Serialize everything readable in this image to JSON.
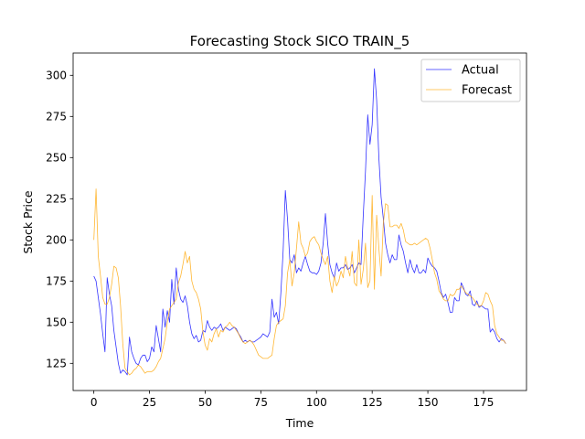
{
  "chart_data": {
    "type": "line",
    "title": "Forecasting Stock SICO TRAIN_5",
    "xlabel": "Time",
    "ylabel": "Stock Price",
    "xlim": [
      -9.3,
      194.3
    ],
    "ylim": [
      108.5,
      313.5
    ],
    "xticks": [
      "0",
      "25",
      "50",
      "75",
      "100",
      "125",
      "150",
      "175"
    ],
    "xtick_values": [
      0,
      25,
      50,
      75,
      100,
      125,
      150,
      175
    ],
    "yticks": [
      "125",
      "150",
      "175",
      "200",
      "225",
      "250",
      "275",
      "300"
    ],
    "ytick_values": [
      125,
      150,
      175,
      200,
      225,
      250,
      275,
      300
    ],
    "grid": false,
    "legend_position": "top-right",
    "series": [
      {
        "name": "Actual",
        "color": "#0000ff",
        "x": [
          0,
          1,
          2,
          3,
          4,
          5,
          6,
          7,
          8,
          9,
          10,
          11,
          12,
          13,
          14,
          15,
          16,
          17,
          18,
          19,
          20,
          21,
          22,
          23,
          24,
          25,
          26,
          27,
          28,
          29,
          30,
          31,
          32,
          33,
          34,
          35,
          36,
          37,
          38,
          39,
          40,
          41,
          42,
          43,
          44,
          45,
          46,
          47,
          48,
          49,
          50,
          51,
          52,
          53,
          54,
          55,
          56,
          57,
          58,
          59,
          60,
          61,
          62,
          63,
          64,
          65,
          66,
          67,
          68,
          69,
          70,
          71,
          72,
          73,
          74,
          75,
          76,
          77,
          78,
          79,
          80,
          81,
          82,
          83,
          84,
          85,
          86,
          87,
          88,
          89,
          90,
          91,
          92,
          93,
          94,
          95,
          96,
          97,
          98,
          99,
          100,
          101,
          102,
          103,
          104,
          105,
          106,
          107,
          108,
          109,
          110,
          111,
          112,
          113,
          114,
          115,
          116,
          117,
          118,
          119,
          120,
          121,
          122,
          123,
          124,
          125,
          126,
          127,
          128,
          129,
          130,
          131,
          132,
          133,
          134,
          135,
          136,
          137,
          138,
          139,
          140,
          141,
          142,
          143,
          144,
          145,
          146,
          147,
          148,
          149,
          150,
          151,
          152,
          153,
          154,
          155,
          156,
          157,
          158,
          159,
          160,
          161,
          162,
          163,
          164,
          165,
          166,
          167,
          168,
          169,
          170,
          171,
          172,
          173,
          174,
          175,
          176,
          177,
          178,
          179,
          180,
          181,
          182,
          183,
          184,
          185
        ],
        "values": [
          178,
          175,
          165,
          155,
          143,
          132,
          177,
          167,
          160,
          145,
          135,
          125,
          119,
          121,
          120,
          118,
          141,
          132,
          128,
          125,
          124,
          128,
          130,
          130,
          126,
          128,
          135,
          132,
          148,
          140,
          132,
          158,
          147,
          157,
          150,
          176,
          161,
          183,
          170,
          164,
          162,
          166,
          160,
          150,
          143,
          140,
          142,
          138,
          139,
          145,
          144,
          151,
          147,
          145,
          147,
          146,
          147,
          149,
          145,
          147,
          146,
          145,
          146,
          147,
          146,
          143,
          141,
          138,
          139,
          138,
          139,
          138,
          138,
          139,
          140,
          141,
          143,
          142,
          141,
          144,
          164,
          153,
          156,
          149,
          168,
          193,
          230,
          212,
          188,
          186,
          191,
          180,
          183,
          181,
          186,
          190,
          185,
          181,
          180,
          180,
          179,
          181,
          186,
          198,
          216,
          198,
          185,
          180,
          177,
          186,
          181,
          183,
          183,
          185,
          182,
          183,
          185,
          180,
          183,
          186,
          185,
          215,
          242,
          276,
          258,
          270,
          304,
          285,
          250,
          226,
          213,
          198,
          191,
          186,
          191,
          188,
          188,
          203,
          197,
          193,
          186,
          180,
          188,
          183,
          180,
          185,
          180,
          180,
          182,
          180,
          189,
          186,
          184,
          183,
          181,
          175,
          168,
          165,
          167,
          162,
          156,
          156,
          165,
          163,
          163,
          174,
          171,
          167,
          166,
          169,
          161,
          160,
          163,
          159,
          160,
          159,
          158,
          158,
          144,
          146,
          144,
          140,
          138,
          140,
          139,
          137
        ],
        "linewidth": 0.8
      },
      {
        "name": "Forecast",
        "color": "#ffa500",
        "x": [
          0,
          1,
          2,
          3,
          4,
          5,
          6,
          7,
          8,
          9,
          10,
          11,
          12,
          13,
          14,
          15,
          16,
          17,
          18,
          19,
          20,
          21,
          22,
          23,
          24,
          25,
          26,
          27,
          28,
          29,
          30,
          31,
          32,
          33,
          34,
          35,
          36,
          37,
          38,
          39,
          40,
          41,
          42,
          43,
          44,
          45,
          46,
          47,
          48,
          49,
          50,
          51,
          52,
          53,
          54,
          55,
          56,
          57,
          58,
          59,
          60,
          61,
          62,
          63,
          64,
          65,
          66,
          67,
          68,
          69,
          70,
          71,
          72,
          73,
          74,
          75,
          76,
          77,
          78,
          79,
          80,
          81,
          82,
          83,
          84,
          85,
          86,
          87,
          88,
          89,
          90,
          91,
          92,
          93,
          94,
          95,
          96,
          97,
          98,
          99,
          100,
          101,
          102,
          103,
          104,
          105,
          106,
          107,
          108,
          109,
          110,
          111,
          112,
          113,
          114,
          115,
          116,
          117,
          118,
          119,
          120,
          121,
          122,
          123,
          124,
          125,
          126,
          127,
          128,
          129,
          130,
          131,
          132,
          133,
          134,
          135,
          136,
          137,
          138,
          139,
          140,
          141,
          142,
          143,
          144,
          145,
          146,
          147,
          148,
          149,
          150,
          151,
          152,
          153,
          154,
          155,
          156,
          157,
          158,
          159,
          160,
          161,
          162,
          163,
          164,
          165,
          166,
          167,
          168,
          169,
          170,
          171,
          172,
          173,
          174,
          175,
          176,
          177,
          178,
          179,
          180,
          181,
          182,
          183,
          184,
          185
        ],
        "values": [
          200,
          231,
          190,
          178,
          165,
          161,
          161,
          165,
          173,
          184,
          183,
          177,
          160,
          137,
          122,
          120,
          118,
          119,
          121,
          122,
          124,
          123,
          121,
          119,
          120,
          120,
          120,
          121,
          123,
          126,
          128,
          134,
          140,
          150,
          158,
          160,
          162,
          164,
          174,
          178,
          185,
          193,
          186,
          190,
          175,
          170,
          168,
          164,
          158,
          144,
          136,
          133,
          140,
          138,
          143,
          146,
          141,
          145,
          144,
          147,
          148,
          150,
          148,
          147,
          145,
          143,
          140,
          138,
          137,
          138,
          139,
          138,
          136,
          133,
          130,
          129,
          128,
          128,
          128,
          129,
          130,
          140,
          148,
          150,
          151,
          152,
          160,
          180,
          188,
          172,
          180,
          195,
          211,
          198,
          195,
          190,
          192,
          199,
          201,
          202,
          199,
          197,
          192,
          188,
          185,
          190,
          175,
          168,
          178,
          172,
          175,
          181,
          177,
          190,
          183,
          178,
          193,
          174,
          172,
          200,
          173,
          182,
          198,
          171,
          175,
          227,
          170,
          215,
          195,
          178,
          210,
          222,
          221,
          208,
          208,
          209,
          209,
          207,
          210,
          206,
          199,
          198,
          197,
          197,
          198,
          197,
          198,
          199,
          200,
          201,
          200,
          195,
          188,
          180,
          176,
          169,
          167,
          164,
          163,
          163,
          167,
          166,
          167,
          170,
          170,
          172,
          170,
          168,
          167,
          166,
          165,
          163,
          161,
          160,
          160,
          163,
          168,
          167,
          163,
          160,
          148,
          143,
          141,
          139,
          139,
          137
        ],
        "linewidth": 0.8
      }
    ]
  }
}
